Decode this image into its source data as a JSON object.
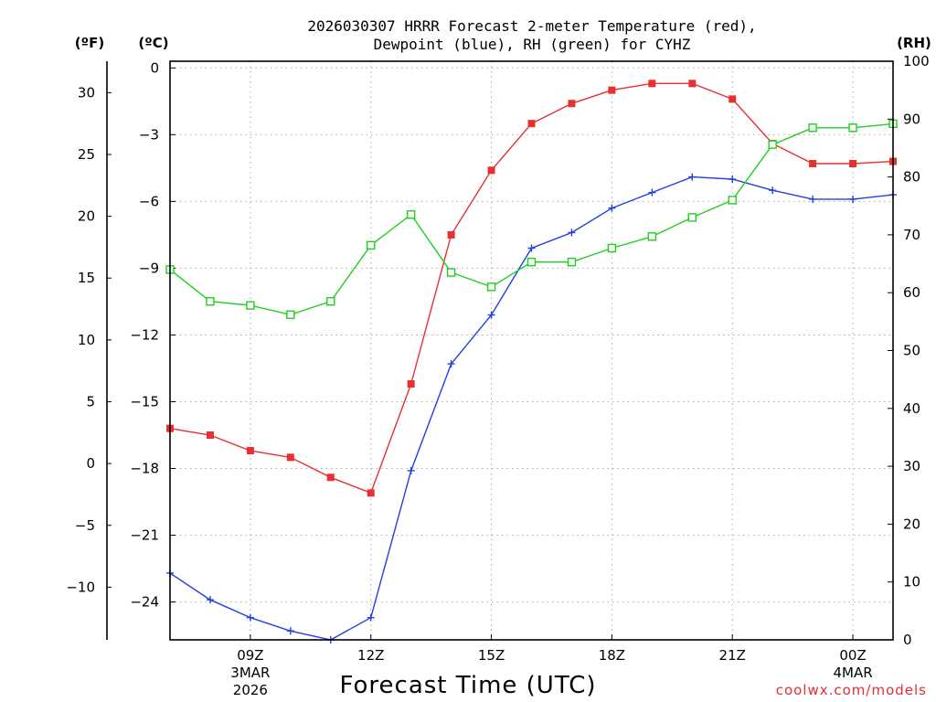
{
  "chart_data": {
    "type": "line",
    "title_line1": "2026030307 HRRR Forecast 2-meter Temperature (red),",
    "title_line2": "Dewpoint (blue), RH (green) for CYHZ",
    "xlabel": "Forecast Time (UTC)",
    "credit": "coolwx.com/models",
    "units": {
      "f": "(ºF)",
      "c": "(ºC)",
      "rh": "(RH)"
    },
    "x_hours_range": [
      7,
      25
    ],
    "x_ticks": [
      {
        "hour": 9,
        "label": "09Z",
        "sub1": "3MAR",
        "sub2": "2026"
      },
      {
        "hour": 12,
        "label": "12Z",
        "sub1": "",
        "sub2": ""
      },
      {
        "hour": 15,
        "label": "15Z",
        "sub1": "",
        "sub2": ""
      },
      {
        "hour": 18,
        "label": "18Z",
        "sub1": "",
        "sub2": ""
      },
      {
        "hour": 21,
        "label": "21Z",
        "sub1": "",
        "sub2": ""
      },
      {
        "hour": 24,
        "label": "00Z",
        "sub1": "4MAR",
        "sub2": ""
      }
    ],
    "c_axis": {
      "range": [
        -25.7,
        0.3
      ],
      "ticks": [
        0,
        -3,
        -6,
        -9,
        -12,
        -15,
        -18,
        -21,
        -24
      ],
      "labels": [
        "0",
        "−3",
        "−6",
        "−9",
        "−12",
        "−15",
        "−18",
        "−21",
        "−24"
      ]
    },
    "f_axis": {
      "ticks": [
        30,
        25,
        20,
        15,
        10,
        5,
        0,
        -5,
        -10
      ],
      "labels": [
        "30",
        "25",
        "20",
        "15",
        "10",
        "5",
        "0",
        "−5",
        "−10"
      ]
    },
    "rh_axis": {
      "range": [
        0,
        100
      ],
      "ticks": [
        0,
        10,
        20,
        30,
        40,
        50,
        60,
        70,
        80,
        90,
        100
      ],
      "labels": [
        "0",
        "10",
        "20",
        "30",
        "40",
        "50",
        "60",
        "70",
        "80",
        "90",
        "100"
      ]
    },
    "series": [
      {
        "name": "Temperature",
        "unit": "C",
        "color": "#e83030",
        "marker": "filled-square",
        "x": [
          7,
          8,
          9,
          10,
          11,
          12,
          13,
          14,
          15,
          16,
          17,
          18,
          19,
          20,
          21,
          22,
          23,
          24,
          25
        ],
        "values": [
          -16.2,
          -16.5,
          -17.2,
          -17.5,
          -18.4,
          -19.1,
          -14.2,
          -7.5,
          -4.6,
          -2.5,
          -1.6,
          -1.0,
          -0.7,
          -0.7,
          -1.4,
          -3.4,
          -4.3,
          -4.3,
          -4.2
        ]
      },
      {
        "name": "Dewpoint",
        "unit": "C",
        "color": "#2040e0",
        "marker": "plus",
        "x": [
          7,
          8,
          9,
          10,
          11,
          12,
          13,
          14,
          15,
          16,
          17,
          18,
          19,
          20,
          21,
          22,
          23,
          24,
          25
        ],
        "values": [
          -22.7,
          -23.9,
          -24.7,
          -25.3,
          -25.7,
          -24.7,
          -18.1,
          -13.3,
          -11.1,
          -8.1,
          -7.4,
          -6.3,
          -5.6,
          -4.9,
          -5.0,
          -5.5,
          -5.9,
          -5.9,
          -5.7
        ]
      },
      {
        "name": "RH",
        "unit": "%",
        "color": "#20d020",
        "marker": "open-square",
        "x": [
          7,
          8,
          9,
          10,
          11,
          12,
          13,
          14,
          15,
          16,
          17,
          18,
          19,
          20,
          21,
          22,
          23,
          24,
          25
        ],
        "values": [
          64,
          58.5,
          57.8,
          56.2,
          58.5,
          68.2,
          73.5,
          63.5,
          61,
          65.3,
          65.3,
          67.7,
          69.7,
          73,
          76,
          85.6,
          88.5,
          88.5,
          89.2
        ]
      }
    ]
  }
}
